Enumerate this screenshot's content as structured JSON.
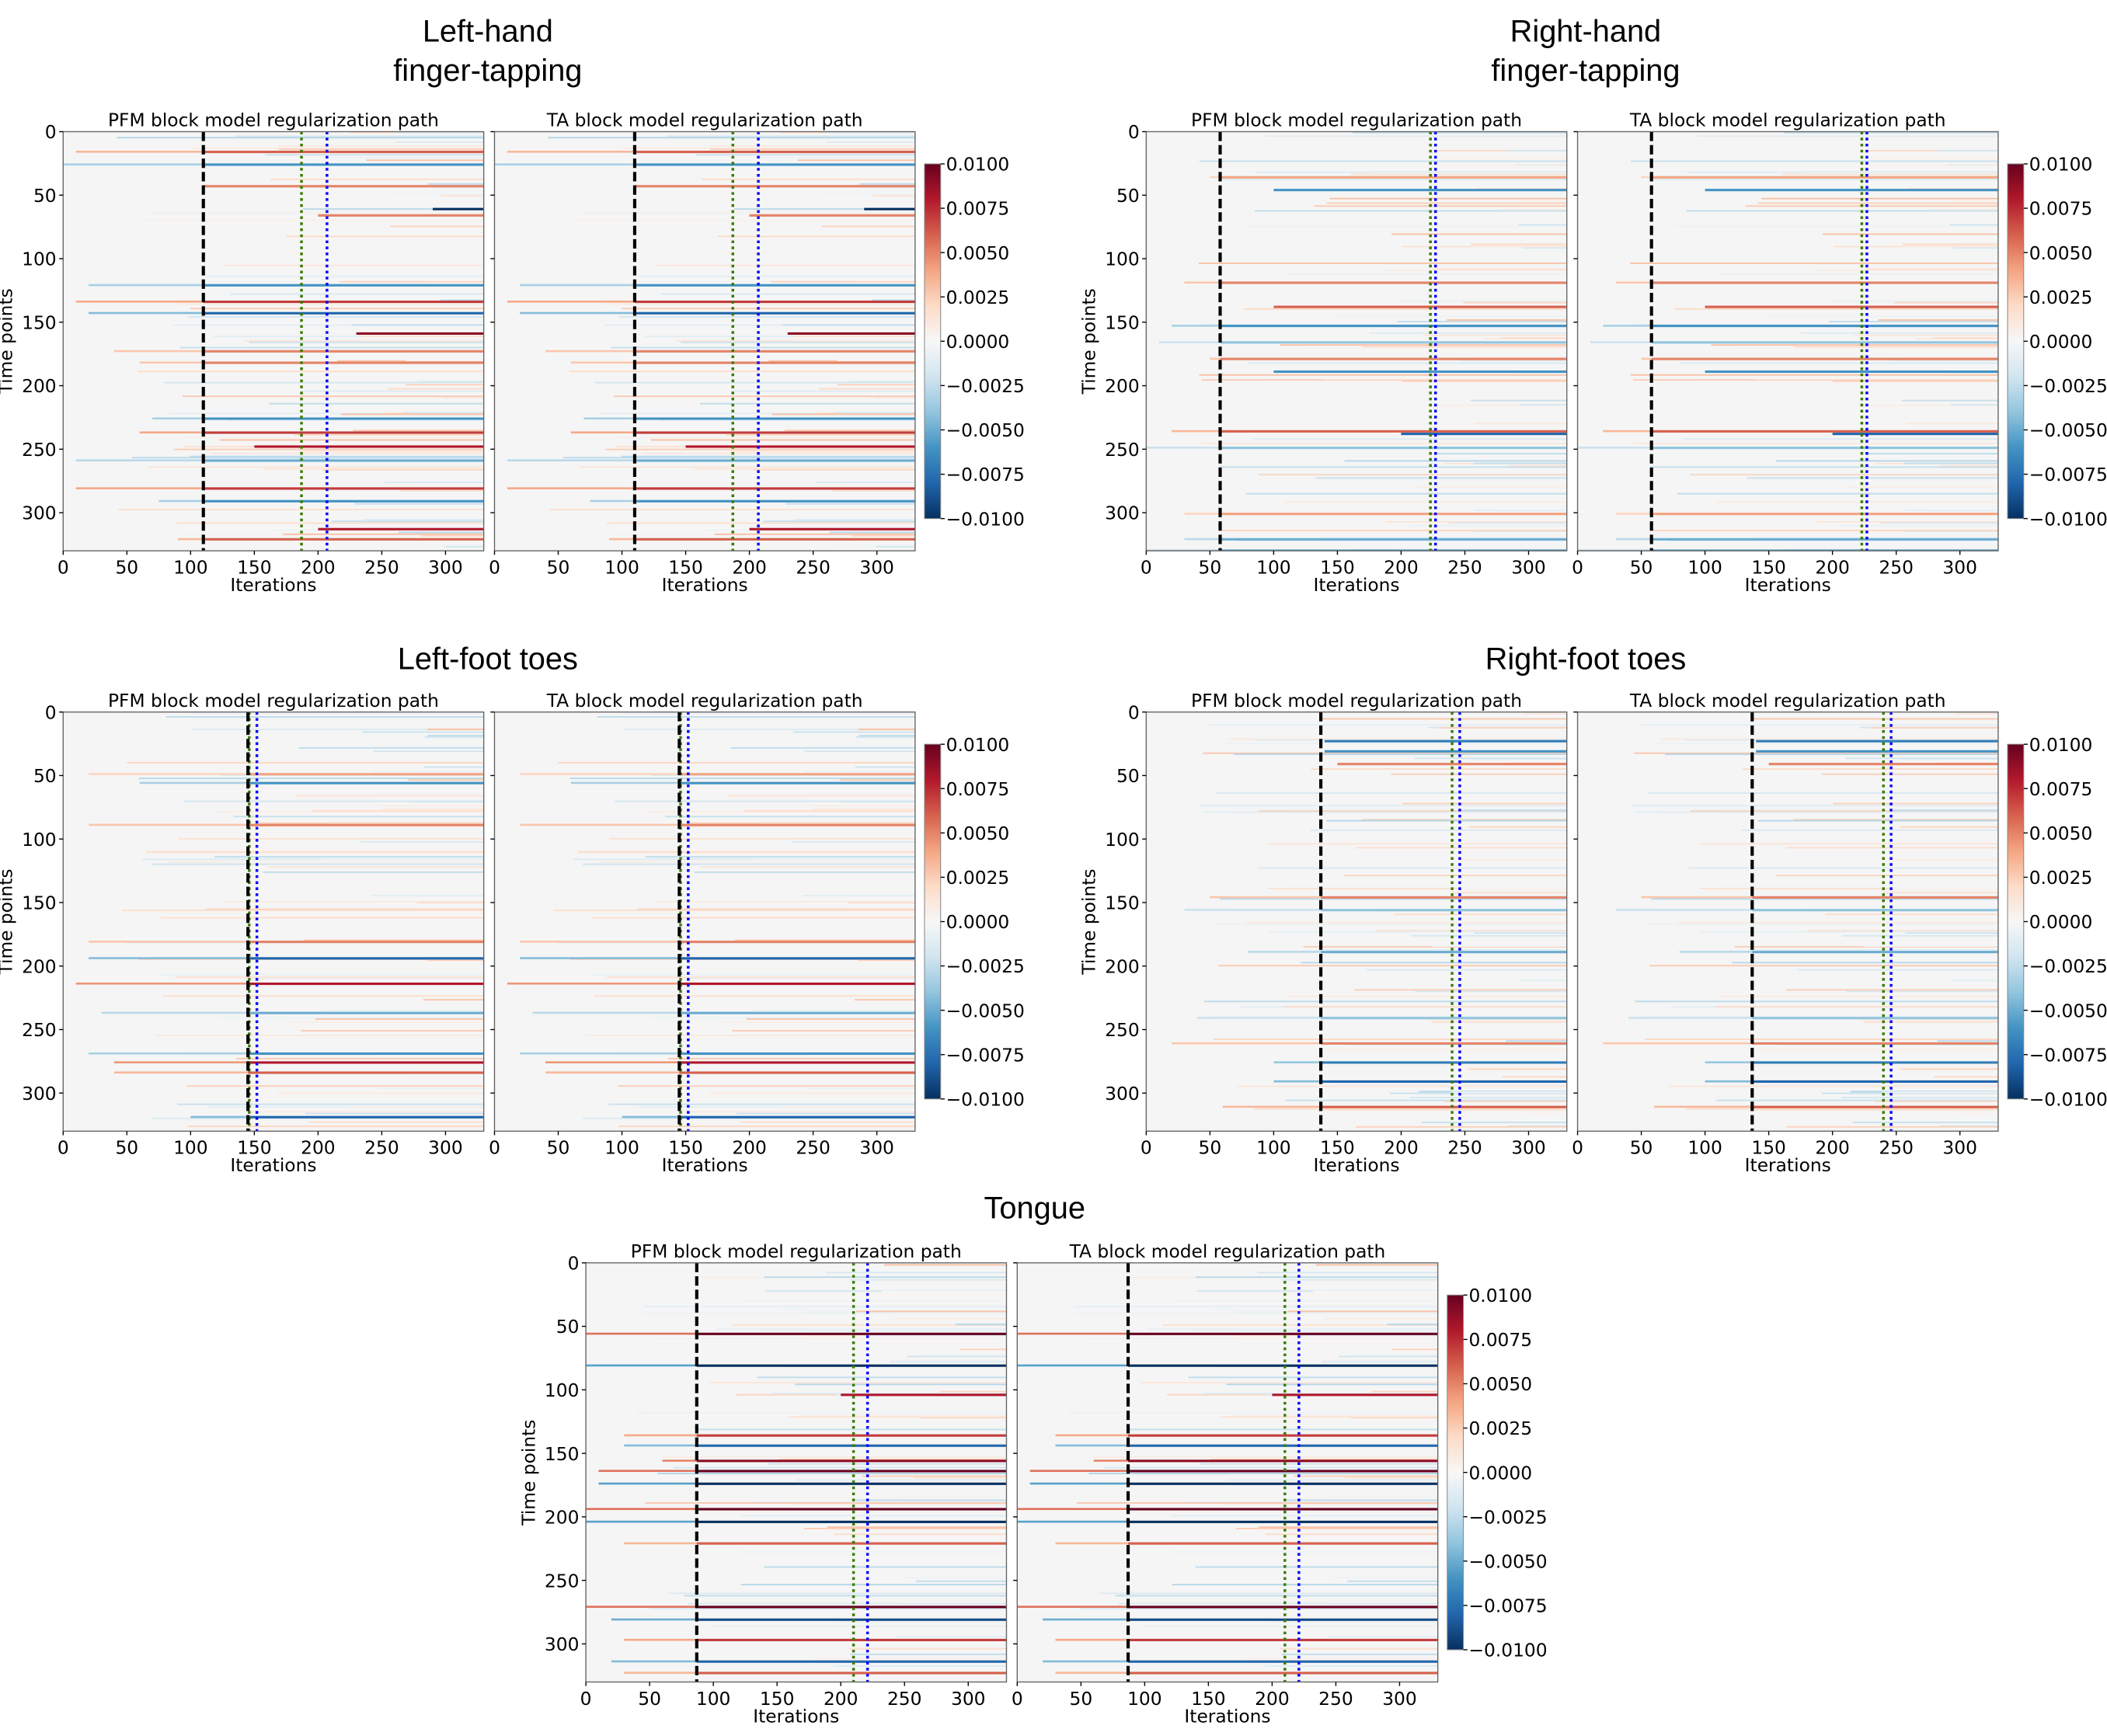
{
  "chart_data": [
    {
      "type": "heatmap",
      "group_title": [
        "Left-hand",
        "finger-tapping"
      ],
      "panels": [
        {
          "title": "PFM block model regularization path"
        },
        {
          "title": "TA block model regularization path"
        }
      ],
      "xlabel": "Iterations",
      "ylabel": "Time points",
      "xlim": [
        0,
        330
      ],
      "ylim": [
        330,
        0
      ],
      "xticks": [
        "0",
        "50",
        "100",
        "150",
        "200",
        "250",
        "300"
      ],
      "yticks": [
        "0",
        "50",
        "100",
        "150",
        "200",
        "250",
        "300"
      ],
      "vlines": {
        "black_dashed": 110,
        "green_dotted": 187,
        "blue_dotted": 207
      },
      "colorbar": {
        "range": [
          -0.01,
          0.01
        ],
        "ticks": [
          "0.0100",
          "0.0075",
          "0.0050",
          "0.0025",
          "0.0000",
          "−0.0025",
          "−0.0050",
          "−0.0075",
          "−0.0100"
        ]
      },
      "stripes": [
        [
          15,
          10,
          0.006
        ],
        [
          25,
          0,
          -0.006
        ],
        [
          42,
          110,
          0.005
        ],
        [
          60,
          290,
          -0.01
        ],
        [
          65,
          200,
          0.005
        ],
        [
          120,
          20,
          -0.006
        ],
        [
          133,
          10,
          0.007
        ],
        [
          142,
          20,
          -0.008
        ],
        [
          158,
          230,
          0.009
        ],
        [
          172,
          40,
          0.005
        ],
        [
          181,
          60,
          0.005
        ],
        [
          225,
          70,
          -0.006
        ],
        [
          236,
          60,
          0.007
        ],
        [
          247,
          150,
          0.008
        ],
        [
          258,
          10,
          -0.005
        ],
        [
          280,
          10,
          0.007
        ],
        [
          290,
          75,
          -0.006
        ],
        [
          312,
          200,
          0.008
        ],
        [
          320,
          90,
          0.006
        ]
      ]
    },
    {
      "type": "heatmap",
      "group_title": [
        "Right-hand",
        "finger-tapping"
      ],
      "panels": [
        {
          "title": "PFM block model regularization path"
        },
        {
          "title": "TA block model regularization path"
        }
      ],
      "xlabel": "Iterations",
      "ylabel": "Time points",
      "xlim": [
        0,
        330
      ],
      "ylim": [
        330,
        0
      ],
      "xticks": [
        "0",
        "50",
        "100",
        "150",
        "200",
        "250",
        "300"
      ],
      "yticks": [
        "0",
        "50",
        "100",
        "150",
        "200",
        "250",
        "300"
      ],
      "vlines": {
        "black_dashed": 58,
        "green_dotted": 223,
        "blue_dotted": 227
      },
      "colorbar": {
        "range": [
          -0.01,
          0.01
        ],
        "ticks": [
          "0.0100",
          "0.0075",
          "0.0050",
          "0.0025",
          "0.0000",
          "−0.0025",
          "−0.0050",
          "−0.0075",
          "−0.0100"
        ]
      },
      "stripes": [
        [
          35,
          50,
          0.004
        ],
        [
          45,
          100,
          -0.006
        ],
        [
          118,
          30,
          0.005
        ],
        [
          137,
          100,
          0.006
        ],
        [
          152,
          20,
          -0.006
        ],
        [
          165,
          10,
          -0.004
        ],
        [
          178,
          50,
          0.005
        ],
        [
          188,
          100,
          -0.006
        ],
        [
          235,
          20,
          0.006
        ],
        [
          237,
          200,
          -0.008
        ],
        [
          248,
          0,
          -0.004
        ],
        [
          300,
          30,
          0.004
        ],
        [
          320,
          30,
          -0.005
        ],
        [
          329,
          0,
          -0.006
        ]
      ]
    },
    {
      "type": "heatmap",
      "group_title": [
        "Left-foot toes"
      ],
      "panels": [
        {
          "title": "PFM block model regularization path"
        },
        {
          "title": "TA block model regularization path"
        }
      ],
      "xlabel": "Iterations",
      "ylabel": "Time points",
      "xlim": [
        0,
        330
      ],
      "ylim": [
        330,
        0
      ],
      "xticks": [
        "0",
        "50",
        "100",
        "150",
        "200",
        "250",
        "300"
      ],
      "yticks": [
        "0",
        "50",
        "100",
        "150",
        "200",
        "250",
        "300"
      ],
      "vlines": {
        "black_dashed": 145,
        "green_dotted": 146,
        "blue_dotted": 152
      },
      "colorbar": {
        "range": [
          -0.01,
          0.01
        ],
        "ticks": [
          "0.0100",
          "0.0075",
          "0.0050",
          "0.0025",
          "0.0000",
          "−0.0025",
          "−0.0050",
          "−0.0075",
          "−0.0100"
        ]
      },
      "stripes": [
        [
          48,
          20,
          0.004
        ],
        [
          55,
          60,
          -0.006
        ],
        [
          88,
          20,
          0.005
        ],
        [
          180,
          20,
          0.005
        ],
        [
          193,
          20,
          -0.008
        ],
        [
          213,
          10,
          0.008
        ],
        [
          236,
          30,
          -0.005
        ],
        [
          268,
          20,
          -0.006
        ],
        [
          275,
          40,
          0.008
        ],
        [
          283,
          40,
          0.006
        ],
        [
          318,
          100,
          -0.008
        ]
      ]
    },
    {
      "type": "heatmap",
      "group_title": [
        "Right-foot toes"
      ],
      "panels": [
        {
          "title": "PFM block model regularization path"
        },
        {
          "title": "TA block model regularization path"
        }
      ],
      "xlabel": "Iterations",
      "ylabel": "Time points",
      "xlim": [
        0,
        330
      ],
      "ylim": [
        330,
        0
      ],
      "xticks": [
        "0",
        "50",
        "100",
        "150",
        "200",
        "250",
        "300"
      ],
      "yticks": [
        "0",
        "50",
        "100",
        "150",
        "200",
        "250",
        "300"
      ],
      "vlines": {
        "black_dashed": 137,
        "green_dotted": 240,
        "blue_dotted": 246
      },
      "colorbar": {
        "range": [
          -0.01,
          0.01
        ],
        "ticks": [
          "0.0100",
          "0.0075",
          "0.0050",
          "0.0025",
          "0.0000",
          "−0.0025",
          "−0.0050",
          "−0.0075",
          "−0.0100"
        ]
      },
      "stripes": [
        [
          22,
          140,
          -0.007
        ],
        [
          30,
          140,
          -0.006
        ],
        [
          40,
          150,
          0.005
        ],
        [
          145,
          50,
          0.005
        ],
        [
          155,
          30,
          -0.004
        ],
        [
          188,
          80,
          -0.005
        ],
        [
          240,
          40,
          -0.004
        ],
        [
          260,
          20,
          0.005
        ],
        [
          275,
          100,
          -0.007
        ],
        [
          290,
          100,
          -0.008
        ],
        [
          310,
          60,
          0.006
        ]
      ]
    },
    {
      "type": "heatmap",
      "group_title": [
        "Tongue"
      ],
      "panels": [
        {
          "title": "PFM block model regularization path"
        },
        {
          "title": "TA block model regularization path"
        }
      ],
      "xlabel": "Iterations",
      "ylabel": "Time points",
      "xlim": [
        0,
        330
      ],
      "ylim": [
        330,
        0
      ],
      "xticks": [
        "0",
        "50",
        "100",
        "150",
        "200",
        "250",
        "300"
      ],
      "yticks": [
        "0",
        "50",
        "100",
        "150",
        "200",
        "250",
        "300"
      ],
      "vlines": {
        "black_dashed": 87,
        "green_dotted": 210,
        "blue_dotted": 221
      },
      "colorbar": {
        "range": [
          -0.01,
          0.01
        ],
        "ticks": [
          "0.0100",
          "0.0075",
          "0.0050",
          "0.0025",
          "0.0000",
          "−0.0025",
          "−0.0050",
          "−0.0075",
          "−0.0100"
        ]
      },
      "stripes": [
        [
          55,
          0,
          0.01
        ],
        [
          80,
          0,
          -0.01
        ],
        [
          103,
          200,
          0.008
        ],
        [
          135,
          30,
          0.007
        ],
        [
          143,
          30,
          -0.008
        ],
        [
          155,
          60,
          0.009
        ],
        [
          163,
          10,
          0.01
        ],
        [
          173,
          10,
          -0.01
        ],
        [
          193,
          0,
          0.01
        ],
        [
          203,
          0,
          -0.01
        ],
        [
          220,
          30,
          0.006
        ],
        [
          270,
          0,
          0.01
        ],
        [
          280,
          20,
          -0.009
        ],
        [
          296,
          30,
          0.007
        ],
        [
          313,
          20,
          -0.008
        ],
        [
          322,
          30,
          0.006
        ]
      ]
    }
  ],
  "colors": {
    "cmap": "RdBu_r",
    "background": "#f5f5f5",
    "black_line": "#000000",
    "green_line": "#3a7a00",
    "blue_line": "#0000ff"
  }
}
